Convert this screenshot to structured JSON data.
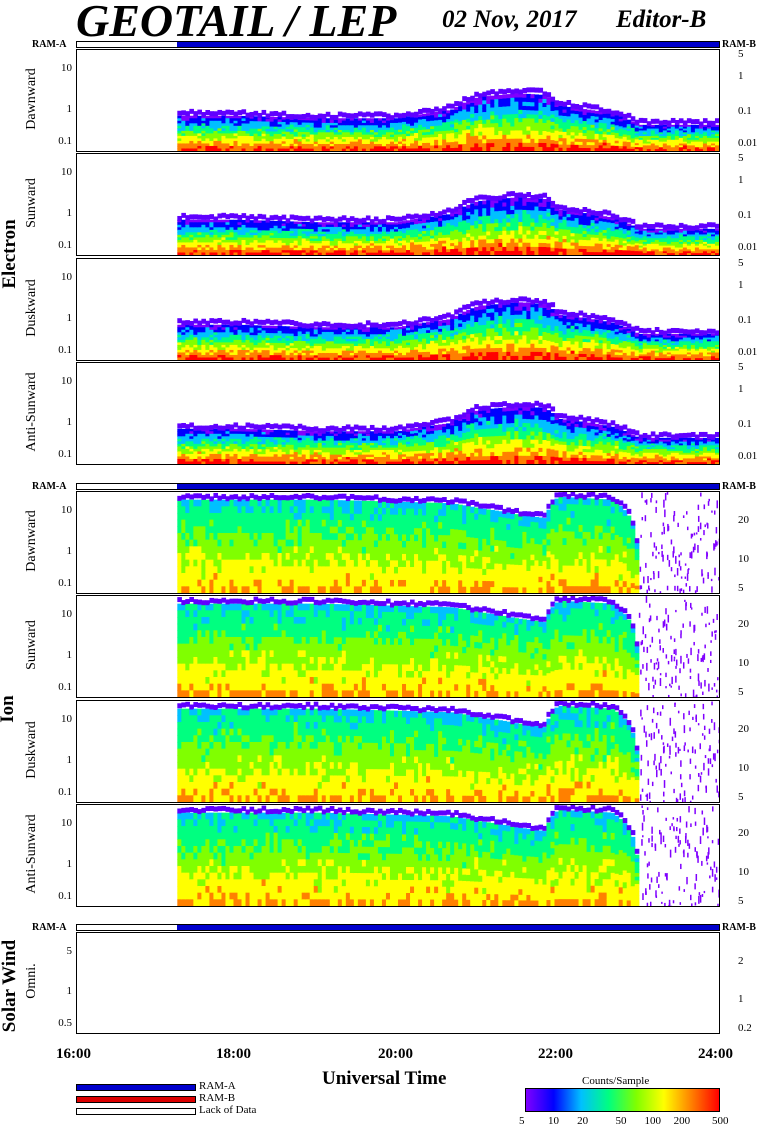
{
  "header": {
    "title": "GEOTAIL / LEP",
    "date": "02 Nov, 2017",
    "editor": "Editor-B"
  },
  "ram": {
    "a": "RAM-A",
    "b": "RAM-B"
  },
  "groups": {
    "electron": "Electron",
    "ion": "Ion",
    "solar_wind": "Solar Wind"
  },
  "electron_panels": [
    {
      "label": "Dawnward",
      "left_ticks": [
        "10",
        "1",
        "0.1"
      ],
      "right_ticks": [
        "5",
        "1",
        "0.1",
        "0.01"
      ]
    },
    {
      "label": "Sunward",
      "left_ticks": [
        "10",
        "1",
        "0.1"
      ],
      "right_ticks": [
        "5",
        "1",
        "0.1",
        "0.01"
      ]
    },
    {
      "label": "Duskward",
      "left_ticks": [
        "10",
        "1",
        "0.1"
      ],
      "right_ticks": [
        "5",
        "1",
        "0.1",
        "0.01"
      ]
    },
    {
      "label": "Anti-Sunward",
      "left_ticks": [
        "10",
        "1",
        "0.1"
      ],
      "right_ticks": [
        "5",
        "1",
        "0.1",
        "0.01"
      ]
    }
  ],
  "ion_panels": [
    {
      "label": "Dawnward",
      "left_ticks": [
        "10",
        "1",
        "0.1"
      ],
      "right_ticks": [
        "20",
        "10",
        "5"
      ]
    },
    {
      "label": "Sunward",
      "left_ticks": [
        "10",
        "1",
        "0.1"
      ],
      "right_ticks": [
        "20",
        "10",
        "5"
      ]
    },
    {
      "label": "Duskward",
      "left_ticks": [
        "10",
        "1",
        "0.1"
      ],
      "right_ticks": [
        "20",
        "10",
        "5"
      ]
    },
    {
      "label": "Anti-Sunward",
      "left_ticks": [
        "10",
        "1",
        "0.1"
      ],
      "right_ticks": [
        "20",
        "10",
        "5"
      ]
    }
  ],
  "sw_panel": {
    "label": "Omni.",
    "left_ticks": [
      "5",
      "1",
      "0.5"
    ],
    "right_ticks": [
      "2",
      "1",
      "0.2"
    ]
  },
  "x_axis": {
    "ticks": [
      "16:00",
      "18:00",
      "20:00",
      "22:00",
      "24:00"
    ],
    "label": "Universal Time"
  },
  "legend": {
    "ram_a": "RAM-A",
    "ram_b": "RAM-B",
    "no_data": "Lack of Data"
  },
  "colorbar": {
    "title": "Counts/Sample",
    "ticks": [
      "5",
      "10",
      "20",
      "50",
      "100",
      "200",
      "500"
    ],
    "colors": [
      "#8000ff",
      "#0000ff",
      "#00c0ff",
      "#00ff80",
      "#80ff00",
      "#ffff00",
      "#ff8000",
      "#ff0000"
    ]
  },
  "chart_data": {
    "type": "heatmap",
    "time_range": [
      "16:00",
      "24:00"
    ],
    "data_start": "17:15",
    "ram_status": "RAM-A",
    "electron_intensity_profile": {
      "times": [
        "17:15",
        "18:00",
        "19:00",
        "20:00",
        "20:40",
        "21:00",
        "21:30",
        "21:50",
        "22:00",
        "22:40",
        "23:00",
        "24:00"
      ],
      "upper_energy_keV": [
        0.7,
        0.7,
        0.6,
        0.6,
        1.0,
        2.2,
        2.8,
        2.5,
        1.3,
        0.8,
        0.4,
        0.4
      ]
    },
    "ion_intensity_profile": {
      "times": [
        "17:15",
        "18:00",
        "19:00",
        "20:00",
        "20:40",
        "21:00",
        "21:30",
        "21:50",
        "22:00",
        "22:40",
        "23:00",
        "24:00"
      ],
      "upper_energy_keV": [
        25,
        25,
        25,
        22,
        20,
        15,
        10,
        8,
        30,
        25,
        0,
        0
      ]
    }
  }
}
